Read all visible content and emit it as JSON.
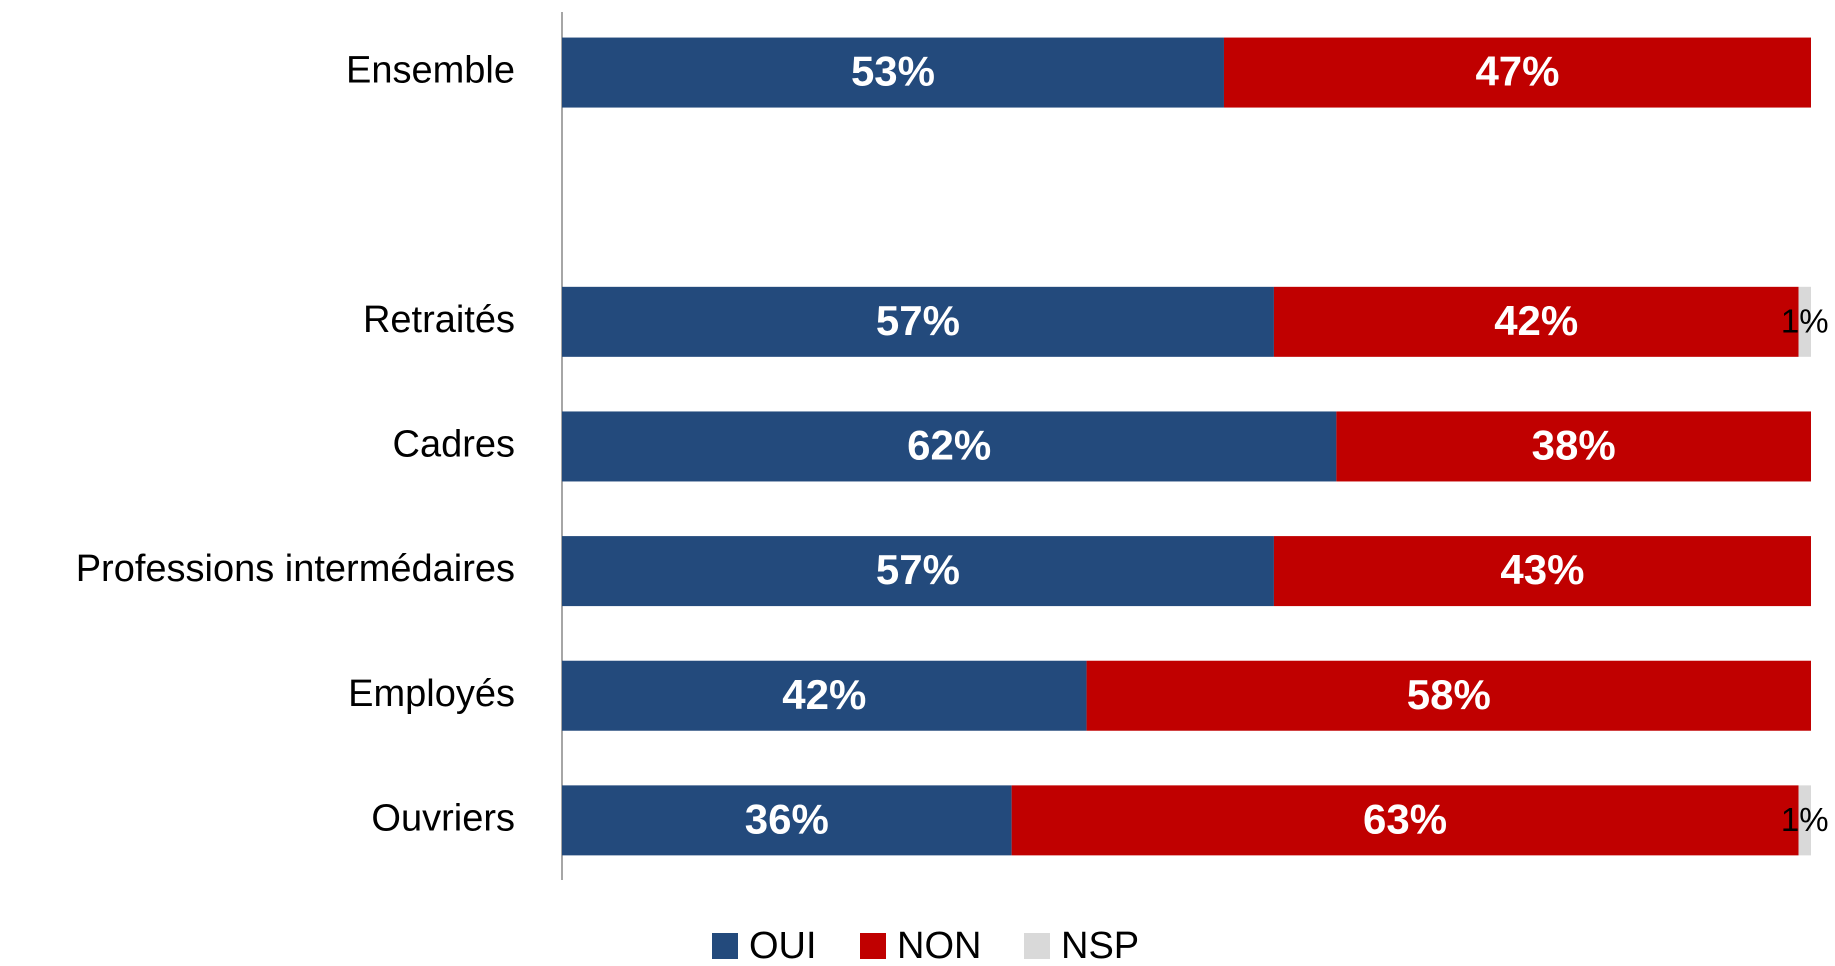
{
  "chart_data": {
    "type": "stacked-barh",
    "categories": [
      "Ensemble",
      null,
      "Retraités",
      "Cadres",
      "Professions intermédaires",
      "Employés",
      "Ouvriers"
    ],
    "series": [
      {
        "name": "OUI",
        "color": "#234a7c",
        "values": [
          53,
          null,
          57,
          62,
          57,
          42,
          36
        ],
        "value_labels": [
          "53%",
          null,
          "57%",
          "62%",
          "57%",
          "42%",
          "36%"
        ]
      },
      {
        "name": "NON",
        "color": "#c00000",
        "values": [
          47,
          null,
          42,
          38,
          43,
          58,
          63
        ],
        "value_labels": [
          "47%",
          null,
          "42%",
          "38%",
          "43%",
          "58%",
          "63%"
        ]
      },
      {
        "name": "NSP",
        "color": "#d9d9d9",
        "values": [
          null,
          null,
          1,
          null,
          null,
          null,
          1
        ],
        "value_labels": [
          null,
          null,
          "1%",
          null,
          null,
          null,
          "1%"
        ]
      }
    ],
    "xlim": [
      0,
      100
    ],
    "legend": "bottom"
  }
}
